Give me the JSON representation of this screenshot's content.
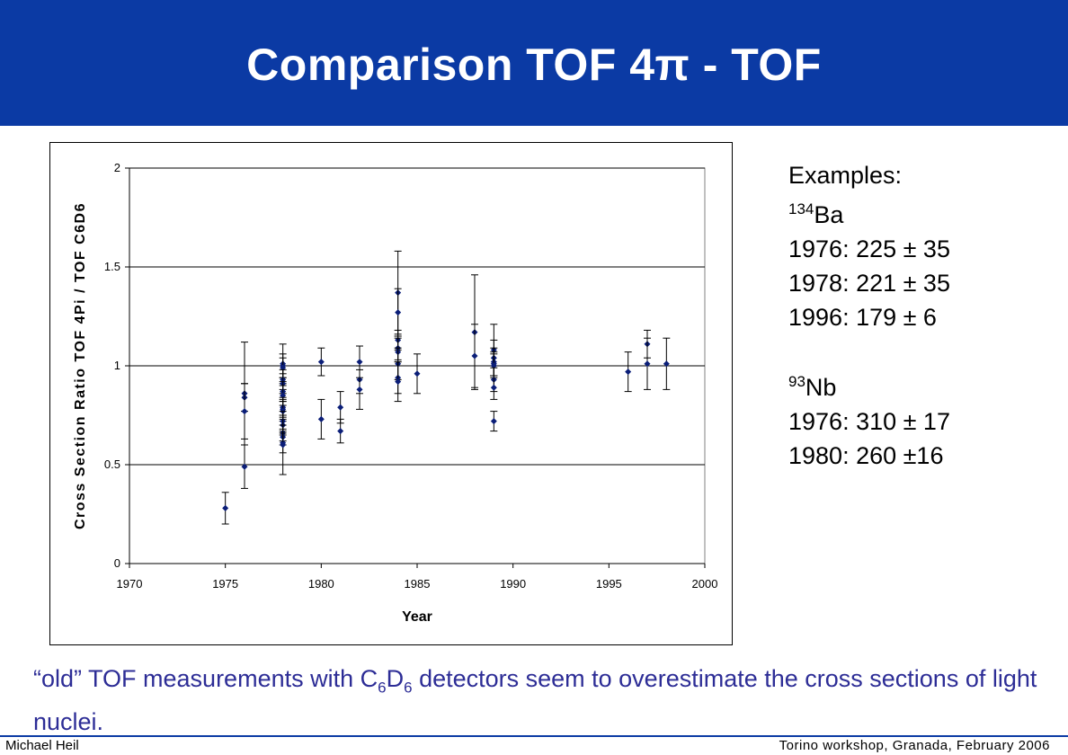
{
  "slide": {
    "title": "Comparison TOF 4π - TOF"
  },
  "examples": {
    "heading": "Examples:",
    "iso1_mass": "134",
    "iso1_symbol": "Ba",
    "iso1_rows": [
      "1976: 225 ± 35",
      "1978: 221 ± 35",
      "1996: 179 ± 6"
    ],
    "iso2_mass": "93",
    "iso2_symbol": "Nb",
    "iso2_rows": [
      "1976: 310 ± 17",
      "1980: 260 ±16"
    ]
  },
  "conclusion": {
    "part1": "“old” TOF measurements with C",
    "sub1": "6",
    "part2": "D",
    "sub2": "6",
    "part3": " detectors seem to overestimate the cross sections of light nuclei."
  },
  "footer": {
    "author": "Michael Heil",
    "event": "Torino workshop, Granada,  February 2006"
  },
  "colors": {
    "banner": "#0b3aa4",
    "marker": "#0b1e78",
    "conclusion_text": "#2d2d96"
  },
  "chart_data": {
    "type": "scatter",
    "title": "",
    "xlabel": "Year",
    "ylabel": "Cross Section Ratio TOF 4Pi / TOF C6D6",
    "xlim": [
      1970,
      2000
    ],
    "ylim": [
      0,
      2
    ],
    "xticks": [
      1970,
      1975,
      1980,
      1985,
      1990,
      1995,
      2000
    ],
    "yticks": [
      0,
      0.5,
      1,
      1.5,
      2
    ],
    "ytick_labels": [
      "0",
      "0.5",
      "1",
      "1.5",
      "2"
    ],
    "grid": "horizontal",
    "legend": "none",
    "points": [
      {
        "x": 1975,
        "y": 0.28,
        "err": 0.08
      },
      {
        "x": 1976,
        "y": 0.86,
        "err": 0.26
      },
      {
        "x": 1976,
        "y": 0.84,
        "err": 0.07
      },
      {
        "x": 1976,
        "y": 0.77,
        "err": 0.14
      },
      {
        "x": 1976,
        "y": 0.49,
        "err": 0.11
      },
      {
        "x": 1978,
        "y": 1.01,
        "err": 0.1
      },
      {
        "x": 1978,
        "y": 1.0,
        "err": 0.06
      },
      {
        "x": 1978,
        "y": 0.99,
        "err": 0.05
      },
      {
        "x": 1978,
        "y": 0.93,
        "err": 0.05
      },
      {
        "x": 1978,
        "y": 0.91,
        "err": 0.05
      },
      {
        "x": 1978,
        "y": 0.87,
        "err": 0.05
      },
      {
        "x": 1978,
        "y": 0.85,
        "err": 0.05
      },
      {
        "x": 1978,
        "y": 0.79,
        "err": 0.05
      },
      {
        "x": 1978,
        "y": 0.78,
        "err": 0.05
      },
      {
        "x": 1978,
        "y": 0.77,
        "err": 0.05
      },
      {
        "x": 1978,
        "y": 0.72,
        "err": 0.05
      },
      {
        "x": 1978,
        "y": 0.7,
        "err": 0.05
      },
      {
        "x": 1978,
        "y": 0.66,
        "err": 0.04
      },
      {
        "x": 1978,
        "y": 0.64,
        "err": 0.04
      },
      {
        "x": 1978,
        "y": 0.61,
        "err": 0.05
      },
      {
        "x": 1978,
        "y": 0.6,
        "err": 0.15
      },
      {
        "x": 1980,
        "y": 1.02,
        "err": 0.07
      },
      {
        "x": 1980,
        "y": 0.73,
        "err": 0.1
      },
      {
        "x": 1981,
        "y": 0.79,
        "err": 0.08
      },
      {
        "x": 1981,
        "y": 0.67,
        "err": 0.06
      },
      {
        "x": 1982,
        "y": 1.02,
        "err": 0.08
      },
      {
        "x": 1982,
        "y": 0.93,
        "err": 0.07
      },
      {
        "x": 1982,
        "y": 0.88,
        "err": 0.1
      },
      {
        "x": 1984,
        "y": 1.37,
        "err": 0.21
      },
      {
        "x": 1984,
        "y": 1.27,
        "err": 0.12
      },
      {
        "x": 1984,
        "y": 1.13,
        "err": 0.05
      },
      {
        "x": 1984,
        "y": 1.09,
        "err": 0.06
      },
      {
        "x": 1984,
        "y": 1.07,
        "err": 0.07
      },
      {
        "x": 1984,
        "y": 1.01,
        "err": 0.08
      },
      {
        "x": 1984,
        "y": 0.94,
        "err": 0.08
      },
      {
        "x": 1984,
        "y": 0.92,
        "err": 0.1
      },
      {
        "x": 1985,
        "y": 0.96,
        "err": 0.1
      },
      {
        "x": 1988,
        "y": 1.17,
        "err": 0.29
      },
      {
        "x": 1988,
        "y": 1.05,
        "err": 0.16
      },
      {
        "x": 1989,
        "y": 1.08,
        "err": 0.13
      },
      {
        "x": 1989,
        "y": 1.04,
        "err": 0.09
      },
      {
        "x": 1989,
        "y": 1.02,
        "err": 0.07
      },
      {
        "x": 1989,
        "y": 1.01,
        "err": 0.06
      },
      {
        "x": 1989,
        "y": 1.0,
        "err": 0.06
      },
      {
        "x": 1989,
        "y": 0.93,
        "err": 0.06
      },
      {
        "x": 1989,
        "y": 0.89,
        "err": 0.06
      },
      {
        "x": 1989,
        "y": 0.72,
        "err": 0.05
      },
      {
        "x": 1996,
        "y": 0.97,
        "err": 0.1
      },
      {
        "x": 1997,
        "y": 1.11,
        "err": 0.07
      },
      {
        "x": 1997,
        "y": 1.01,
        "err": 0.13
      },
      {
        "x": 1998,
        "y": 1.01,
        "err": 0.13
      }
    ]
  }
}
